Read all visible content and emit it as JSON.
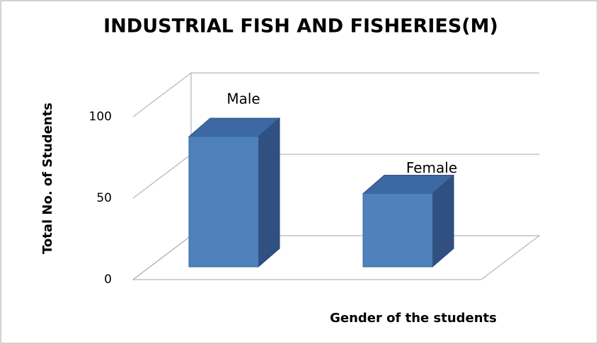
{
  "chart_data": {
    "type": "bar3d",
    "title": "INDUSTRIAL FISH AND FISHERIES(M)",
    "x_label": "Gender of the students",
    "y_label": "Total No. of Students",
    "categories": [
      "Male",
      "Female"
    ],
    "values": [
      80,
      45
    ],
    "color": "#4f81bd",
    "ylim": [
      0,
      100
    ],
    "yticks": [
      0,
      50,
      100
    ],
    "grid": true
  }
}
